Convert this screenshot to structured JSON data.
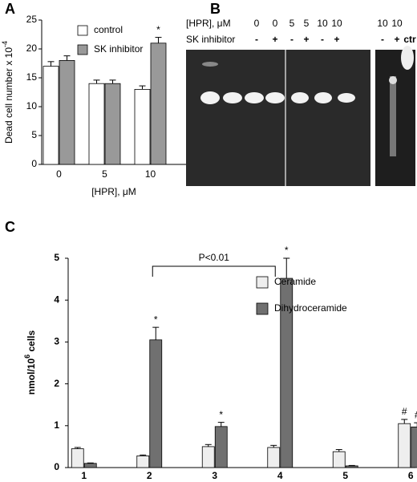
{
  "panel_labels": [
    "A",
    "B",
    "C"
  ],
  "chart_data": [
    {
      "type": "bar",
      "categories": [
        "0",
        "5",
        "10"
      ],
      "xlabel": "[HPR], μM",
      "ylabel": "Dead cell number x 10",
      "ylabel_sup": "-4",
      "ylim": [
        0,
        25
      ],
      "yticks": [
        0,
        5,
        10,
        15,
        20,
        25
      ],
      "legend": "top-left",
      "series": [
        {
          "name": "control",
          "color": "#ffffff",
          "values": [
            17,
            14,
            13
          ],
          "errors": [
            0.8,
            0.6,
            0.6
          ],
          "markers": [
            null,
            null,
            null
          ]
        },
        {
          "name": "SK inhibitor",
          "color": "#999999",
          "values": [
            18,
            14,
            21
          ],
          "errors": [
            0.8,
            0.6,
            1.0
          ],
          "markers": [
            null,
            null,
            "*"
          ]
        }
      ]
    },
    {
      "type": "bar",
      "categories": [
        "1",
        "2",
        "3",
        "4",
        "5",
        "6"
      ],
      "ylabel": "nmol/10",
      "ylabel_sup": "6",
      "ylabel_suffix": " cells",
      "ylim": [
        0,
        5
      ],
      "yticks": [
        0,
        1,
        2,
        3,
        4,
        5
      ],
      "legend": "top-right",
      "bracket": {
        "text": "P<0.01",
        "from": 1,
        "to": 3
      },
      "series": [
        {
          "name": "Ceramide",
          "color": "#eeeeee",
          "values": [
            0.45,
            0.28,
            0.5,
            0.48,
            0.38,
            1.05
          ],
          "errors": [
            0.03,
            0.02,
            0.05,
            0.05,
            0.05,
            0.1
          ],
          "markers": [
            null,
            null,
            null,
            null,
            null,
            "#"
          ]
        },
        {
          "name": "Dihydroceramide",
          "color": "#707070",
          "values": [
            0.1,
            3.05,
            0.98,
            4.52,
            0.04,
            0.97
          ],
          "errors": [
            0.01,
            0.3,
            0.1,
            0.48,
            0.01,
            0.1
          ],
          "markers": [
            null,
            "*",
            "*",
            "*",
            null,
            "#"
          ]
        }
      ]
    }
  ],
  "gel": {
    "row_labels": [
      "[HPR], μM",
      "SK inhibitor"
    ],
    "hpr": [
      "0",
      "0",
      "5",
      "5",
      "10",
      "10",
      "10",
      "10"
    ],
    "sk": [
      "-",
      "+",
      "-",
      "+",
      "-",
      "+",
      "-",
      "+",
      "ctr"
    ]
  }
}
